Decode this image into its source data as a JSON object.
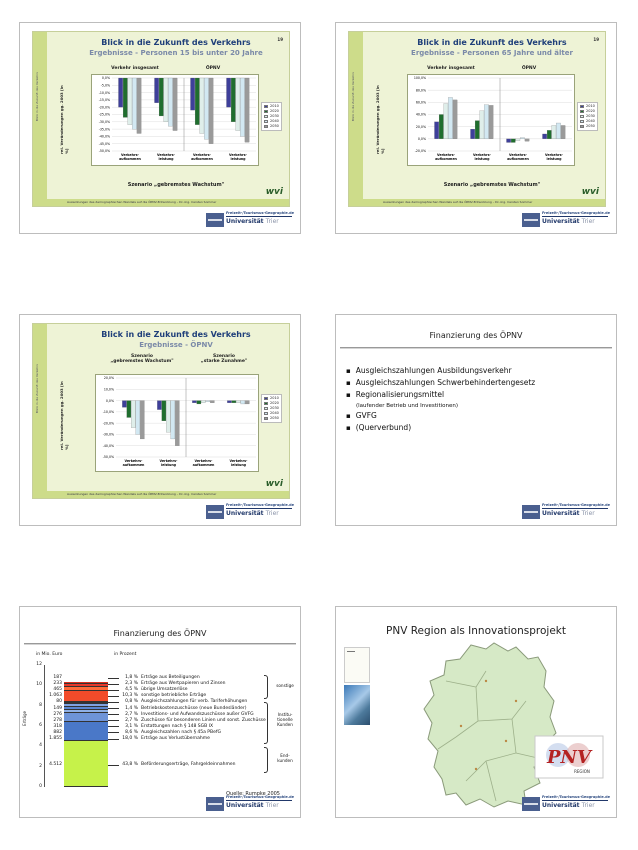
{
  "slide1": {
    "title": "Blick in die Zukunft des Verkehrs",
    "subtitle": "Ergebnisse - Personen 15 bis unter 20 Jahre",
    "page": "19",
    "col_left": "Verkehr insgesamt",
    "col_right": "ÖPNV",
    "ylabel": "rel. Veränderungen gg. 2003 [in %]",
    "sidebar": "Blick in die Zukunft des Verkehrs",
    "yticks": [
      "0,0%",
      "-5,0%",
      "-10,0%",
      "-15,0%",
      "-20,0%",
      "-25,0%",
      "-30,0%",
      "-35,0%",
      "-40,0%",
      "-45,0%",
      "-50,0%"
    ],
    "categories": [
      "Verkehrs-\naufkommen",
      "Verkehrs-\nleistung",
      "Verkehrs-\naufkommen",
      "Verkehrs-\nleistung"
    ],
    "legend": [
      "2010",
      "2020",
      "2030",
      "2040",
      "2050"
    ],
    "scenario": "Szenario „gebremstes Wachstum\"",
    "footer": "Auswirkungen des demographischen Wandels auf die ÖPNV-Entwicklung – Dr.-Ing. Carsten Sommer",
    "logo": "wvi"
  },
  "slide2": {
    "title": "Blick in die Zukunft des Verkehrs",
    "subtitle": "Ergebnisse - Personen 65 Jahre und älter",
    "page": "19",
    "col_left": "Verkehr insgesamt",
    "col_right": "ÖPNV",
    "ylabel": "rel. Veränderungen gg. 2003 [in %]",
    "sidebar": "Blick in die Zukunft des Verkehrs",
    "yticks": [
      "100,0%",
      "80,0%",
      "60,0%",
      "40,0%",
      "20,0%",
      "0,0%",
      "-20,0%"
    ],
    "categories": [
      "Verkehrs-\naufkommen",
      "Verkehrs-\nleistung",
      "Verkehrs-\naufkommen",
      "Verkehrs-\nleistung"
    ],
    "legend": [
      "2010",
      "2020",
      "2030",
      "2040",
      "2050"
    ],
    "scenario": "Szenario „gebremstes Wachstum\"",
    "footer": "Auswirkungen des demographischen Wandels auf die ÖPNV-Entwicklung – Dr.-Ing. Carsten Sommer",
    "logo": "wvi"
  },
  "slide3": {
    "title": "Blick in die Zukunft des Verkehrs",
    "subtitle": "Ergebnisse - ÖPNV",
    "col_left": "Szenario\n„gebremstes Wachstum\"",
    "col_right": "Szenario\n„starke Zunahme\"",
    "ylabel": "rel. Veränderungen gg. 2003 [in %]",
    "sidebar": "Blick in die Zukunft des Verkehrs",
    "yticks": [
      "20,0%",
      "10,0%",
      "0,0%",
      "-10,0%",
      "-20,0%",
      "-30,0%",
      "-40,0%",
      "-50,0%"
    ],
    "categories": [
      "Verkehrs-\naufkommen",
      "Verkehrs-\nleistung",
      "Verkehrs-\naufkommen",
      "Verkehrs-\nleistung"
    ],
    "legend": [
      "2010",
      "2020",
      "2030",
      "2040",
      "2050"
    ],
    "footer": "Auswirkungen des demographischen Wandels auf die ÖPNV-Entwicklung – Dr.-Ing. Carsten Sommer",
    "logo": "wvi"
  },
  "slide4": {
    "title": "Finanzierung des ÖPNV",
    "items": [
      {
        "text": "Ausgleichszahlungen Ausbildungsverkehr",
        "note": false
      },
      {
        "text": "Ausgleichszahlungen Schwerbehindertengesetz",
        "note": false
      },
      {
        "text": "Regionalisierungsmittel",
        "note": false
      },
      {
        "text": "(laufender Betrieb und Investitionen)",
        "note": true
      },
      {
        "text": "GVFG",
        "note": false
      },
      {
        "text": "(Querverbund)",
        "note": false
      }
    ]
  },
  "slide5": {
    "title": "Finanzierung des ÖPNV",
    "unit_left": "in Mio. Euro",
    "unit_right": "in Prozent",
    "ylabel": "Erträge",
    "source": "Quelle: Rumpke 2005",
    "groups": [
      "sonstige",
      "Institu-\ntionelle\nKunden",
      "End-\nkunden"
    ]
  },
  "chart_data": {
    "type": "bar",
    "title": "Finanzierung des ÖPNV",
    "ylabel": "Erträge",
    "ylim": [
      0,
      12
    ],
    "yticks": [
      "0",
      "2",
      "4",
      "6",
      "8",
      "10",
      "12"
    ],
    "stacked": true,
    "segments": [
      {
        "amount": "4.512",
        "value": 4.512,
        "percent": "43,8 %",
        "label": "Beförderungserträge, Fahrgeldeinnahmen",
        "color": "#c6f24a"
      },
      {
        "amount": "1.855",
        "value": 1.855,
        "percent": "18,0 %",
        "label": "Erträge aus Verlustübernahme",
        "color": "#4a78c8"
      },
      {
        "amount": "882",
        "value": 0.882,
        "percent": "8,6 %",
        "label": "Ausgleichszahlen nach § 45a PBefG",
        "color": "#6e94d8"
      },
      {
        "amount": "318",
        "value": 0.318,
        "percent": "3,1 %",
        "label": "Erstattungen nach § 148 SGB IX",
        "color": "#8fb0e6"
      },
      {
        "amount": "278",
        "value": 0.278,
        "percent": "2,7 %",
        "label": "Zuschüsse für besonderen Linien und sonst. Zuschüsse",
        "color": "#5a86d0"
      },
      {
        "amount": "276",
        "value": 0.276,
        "percent": "2,7 %",
        "label": "Investitions- und Aufwandszuschüsse außer GVFG",
        "color": "#7ea2e0"
      },
      {
        "amount": "149",
        "value": 0.149,
        "percent": "1,4 %",
        "label": "Betriebskostenzuschüsse (neue Bundesländer)",
        "color": "#9dbbe9"
      },
      {
        "amount": "80",
        "value": 0.08,
        "percent": "0,8 %",
        "label": "Ausgleichszahlungen für verb. Tariferhöhungen",
        "color": "#3d68b8"
      },
      {
        "amount": "1.063",
        "value": 1.063,
        "percent": "10,3 %",
        "label": "sonstige betriebliche Erträge",
        "color": "#f24b2a"
      },
      {
        "amount": "465",
        "value": 0.465,
        "percent": "4,5 %",
        "label": "übrige Umsatzerlöse",
        "color": "#ff6a3a"
      },
      {
        "amount": "233",
        "value": 0.233,
        "percent": "2,3 %",
        "label": "Erträge aus Wertpapieren und Zinsen",
        "color": "#e8382a"
      },
      {
        "amount": "187",
        "value": 0.187,
        "percent": "1,8 %",
        "label": "Erträge aus Beteiligungen",
        "color": "#d8301e"
      }
    ]
  },
  "slide6": {
    "title": "PNV Region als Innovationsprojekt",
    "logo_text": "PNV",
    "logo_sub": "REGION"
  },
  "unilogo": {
    "geo": "Freizeit-/Tourismus-Geographie.de",
    "uni": "Universität",
    "city": "Trier"
  },
  "colors": {
    "c2010": "#3e3f9a",
    "c2020": "#1f6e2e",
    "c2030": "#dfeeea",
    "c2040": "#d2e8f2",
    "c2050": "#9a9a9a"
  }
}
